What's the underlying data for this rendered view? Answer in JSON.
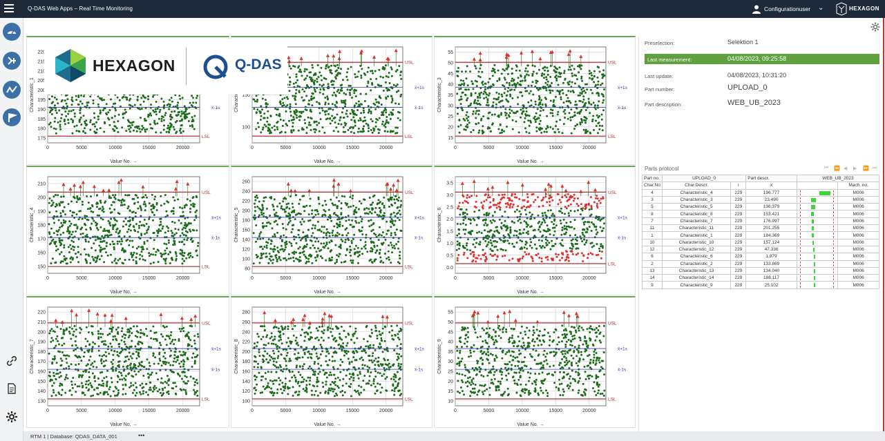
{
  "topbar": {
    "app_title": "Q-DAS Web Apps – Real Time Monitoring",
    "user_name": "Configurationuser",
    "brand": "HEXAGON"
  },
  "logos": {
    "hexagon": "HEXAGON",
    "qdas": "Q-DAS"
  },
  "icons": {
    "menu": "hamburger-menu-icon",
    "user": "user-icon",
    "sidebar": [
      "cloud-gauge-icon",
      "shuffle-tree-icon",
      "line-trend-icon",
      "flag-run-icon",
      "link-icon",
      "report-document-icon",
      "settings-gear-icon"
    ]
  },
  "colors": {
    "topbar": "#1e2a3a",
    "accent_green": "#5fa03f",
    "in_spec": "#1c6b1c",
    "out_spec": "#e03030",
    "limit": "#b03030",
    "mean_lines": "#3a3ab8"
  },
  "charts": [
    {
      "ylabel": "Characteristic_1",
      "yticks": [
        "175",
        "180",
        "185",
        "190",
        "195",
        "200",
        "205",
        "210",
        "215",
        "220"
      ],
      "show_ymax": "21",
      "lines": [
        "USL",
        "x̄+1s",
        "x̄-1s",
        "LSL"
      ],
      "has_upper_outliers": false,
      "has_lower_outliers": false
    },
    {
      "ylabel": "Characteristic_2",
      "yticks": [
        "100",
        "150",
        "200"
      ],
      "lines": [
        "USL",
        "x̄+1s",
        "x̄-1s",
        "LSL"
      ],
      "has_upper_outliers": true,
      "has_lower_outliers": false
    },
    {
      "ylabel": "Characteristic_3",
      "yticks": [
        "15",
        "20",
        "25",
        "30",
        "35",
        "40",
        "45",
        "50",
        "55"
      ],
      "lines": [
        "USL",
        "x̄+1s",
        "x̄-1s",
        "LSL"
      ],
      "has_upper_outliers": true,
      "has_lower_outliers": false
    },
    {
      "ylabel": "Characteristic_4",
      "yticks": [
        "150",
        "160",
        "170",
        "180",
        "190",
        "200",
        "210"
      ],
      "lines": [
        "USL",
        "x̄+1s",
        "x̄-1s",
        "LSL"
      ],
      "has_upper_outliers": true,
      "has_lower_outliers": false
    },
    {
      "ylabel": "Characteristic_5",
      "yticks": [
        "80",
        "100",
        "120",
        "140",
        "160",
        "180",
        "200",
        "220",
        "240",
        "260"
      ],
      "lines": [
        "USL",
        "x̄+1s",
        "x̄-1s",
        "LSL"
      ],
      "has_upper_outliers": true,
      "has_lower_outliers": false
    },
    {
      "ylabel": "Characteristic_6",
      "yticks": [
        "0.0",
        "0.5",
        "1.0",
        "1.5",
        "2.0",
        "2.5",
        "3.0",
        "3.5"
      ],
      "lines": [
        "USL",
        "x̄+1s",
        "x̄-1s",
        "LSL"
      ],
      "has_upper_outliers": true,
      "has_lower_outliers": true
    },
    {
      "ylabel": "Characteristic_7",
      "yticks": [
        "130",
        "140",
        "150",
        "160",
        "170",
        "180",
        "190",
        "200",
        "210",
        "220"
      ],
      "lines": [
        "USL",
        "x̄+1s",
        "x̄-1s",
        "LSL"
      ],
      "has_upper_outliers": true,
      "has_lower_outliers": false
    },
    {
      "ylabel": "Characteristic_8",
      "yticks": [
        "100",
        "120",
        "140",
        "160",
        "180",
        "200",
        "220",
        "240",
        "260",
        "280"
      ],
      "lines": [
        "USL",
        "x̄+1s",
        "x̄-1s",
        "LSL"
      ],
      "has_upper_outliers": true,
      "has_lower_outliers": false
    },
    {
      "ylabel": "Characteristic_9",
      "yticks": [
        "10",
        "15",
        "20",
        "25",
        "30",
        "35",
        "40",
        "45",
        "50",
        "55"
      ],
      "lines": [
        "USL",
        "x̄+1s",
        "x̄-1s",
        "LSL"
      ],
      "has_upper_outliers": true,
      "has_lower_outliers": false
    }
  ],
  "chart_common": {
    "xlabel": "Value No. →",
    "xticks": [
      "0",
      "5000",
      "10000",
      "15000",
      "20000"
    ],
    "x_max": 22500
  },
  "info": {
    "preselection_label": "Preselection:",
    "preselection_value": "Selektion 1",
    "last_measurement_label": "Last measurement:",
    "last_measurement_value": "04/08/2023, 09:25:58",
    "last_update_label": "Last update:",
    "last_update_value": "04/08/2023, 10:31:20",
    "part_number_label": "Part number:",
    "part_number_value": "UPLOAD_0",
    "part_description_label": "Part description:",
    "part_description_value": "WEB_UB_2023"
  },
  "parts_protocol": {
    "title": "Parts protocol",
    "part_no_label": "Part no.",
    "part_no_value": "UPLOAD_0",
    "part_descr_label": "Part descr.",
    "part_descr_value": "WEB_UB_2023",
    "columns": [
      "Char.No",
      "Char.Descr.",
      "i",
      "x",
      "",
      "Mach. no."
    ],
    "rows": [
      {
        "no": "4",
        "descr": "Characteristic_4",
        "i": "229",
        "x": "196.777",
        "mach": "M006",
        "bar_pos": 0.55,
        "bar_w": 0.28
      },
      {
        "no": "3",
        "descr": "Characteristic_3",
        "i": "229",
        "x": "23.490",
        "mach": "M006",
        "bar_pos": 0.35,
        "bar_w": 0.12
      },
      {
        "no": "5",
        "descr": "Characteristic_5",
        "i": "229",
        "x": "136.379",
        "mach": "M006",
        "bar_pos": 0.35,
        "bar_w": 0.09
      },
      {
        "no": "8",
        "descr": "Characteristic_8",
        "i": "229",
        "x": "153.421",
        "mach": "M006",
        "bar_pos": 0.35,
        "bar_w": 0.07
      },
      {
        "no": "7",
        "descr": "Characteristic_7",
        "i": "229",
        "x": "176.997",
        "mach": "M006",
        "bar_pos": 0.36,
        "bar_w": 0.05
      },
      {
        "no": "11",
        "descr": "Characteristic_11",
        "i": "229",
        "x": "201.255",
        "mach": "M006",
        "bar_pos": 0.36,
        "bar_w": 0.05
      },
      {
        "no": "1",
        "descr": "Characteristic_1",
        "i": "229",
        "x": "184.369",
        "mach": "M006",
        "bar_pos": 0.37,
        "bar_w": 0.04
      },
      {
        "no": "10",
        "descr": "Characteristic_10",
        "i": "229",
        "x": "157.124",
        "mach": "M006",
        "bar_pos": 0.38,
        "bar_w": 0.03
      },
      {
        "no": "12",
        "descr": "Characteristic_12",
        "i": "229",
        "x": "47.336",
        "mach": "M006",
        "bar_pos": 0.39,
        "bar_w": 0.025
      },
      {
        "no": "6",
        "descr": "Characteristic_6",
        "i": "229",
        "x": "1.879",
        "mach": "M006",
        "bar_pos": 0.41,
        "bar_w": 0.02
      },
      {
        "no": "2",
        "descr": "Characteristic_2",
        "i": "229",
        "x": "133.869",
        "mach": "M006",
        "bar_pos": 0.41,
        "bar_w": 0.02
      },
      {
        "no": "13",
        "descr": "Characteristic_13",
        "i": "229",
        "x": "134.040",
        "mach": "M006",
        "bar_pos": 0.41,
        "bar_w": 0.02
      },
      {
        "no": "14",
        "descr": "Characteristic_14",
        "i": "229",
        "x": "188.117",
        "mach": "M006",
        "bar_pos": 0.41,
        "bar_w": 0.02
      },
      {
        "no": "9",
        "descr": "Characteristic_9",
        "i": "229",
        "x": "25.102",
        "mach": "M006",
        "bar_pos": 0.41,
        "bar_w": 0.02
      }
    ]
  },
  "statusbar": {
    "text": "RTM 1 | Database: QDAS_DATA_001",
    "more": "•••"
  }
}
